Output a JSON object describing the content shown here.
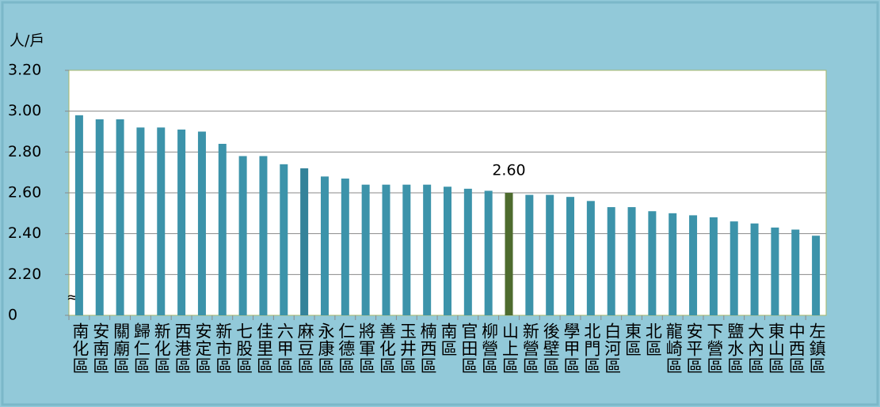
{
  "chart_data": {
    "type": "bar",
    "y_label": "人/戶",
    "categories": [
      "南化區",
      "安南區",
      "關廟區",
      "歸仁區",
      "新化區",
      "西港區",
      "安定區",
      "新市區",
      "七股區",
      "佳里區",
      "六甲區",
      "麻豆區",
      "永康區",
      "仁德區",
      "將軍區",
      "善化區",
      "玉井區",
      "楠西區",
      "南區",
      "官田區",
      "柳營區",
      "山上區",
      "新營區",
      "後壁區",
      "學甲區",
      "北門區",
      "白河區",
      "東區",
      "北區",
      "龍崎區",
      "安平區",
      "下營區",
      "鹽水區",
      "大內區",
      "東山區",
      "中西區",
      "左鎮區"
    ],
    "values": [
      2.98,
      2.96,
      2.96,
      2.92,
      2.92,
      2.91,
      2.9,
      2.84,
      2.78,
      2.78,
      2.74,
      2.72,
      2.68,
      2.67,
      2.64,
      2.64,
      2.64,
      2.64,
      2.63,
      2.62,
      2.61,
      2.6,
      2.59,
      2.59,
      2.58,
      2.56,
      2.53,
      2.53,
      2.51,
      2.5,
      2.49,
      2.48,
      2.46,
      2.45,
      2.43,
      2.42,
      2.39
    ],
    "value_labels": [
      null,
      null,
      null,
      null,
      null,
      null,
      null,
      null,
      null,
      null,
      null,
      null,
      null,
      null,
      null,
      null,
      null,
      null,
      null,
      null,
      null,
      "2.60",
      null,
      null,
      null,
      null,
      null,
      null,
      null,
      null,
      null,
      null,
      null,
      null,
      null,
      null,
      null
    ],
    "colors": [
      "#3c93aa",
      "#3c93aa",
      "#3c93aa",
      "#3c93aa",
      "#3c93aa",
      "#3c93aa",
      "#3c93aa",
      "#3c93aa",
      "#3c93aa",
      "#3c93aa",
      "#3c93aa",
      "#34839a",
      "#3c93aa",
      "#3c93aa",
      "#3c93aa",
      "#3c93aa",
      "#3c93aa",
      "#3c93aa",
      "#3c93aa",
      "#3c93aa",
      "#3c93aa",
      "#4e6b2e",
      "#3c93aa",
      "#3c93aa",
      "#3c93aa",
      "#3c93aa",
      "#3c93aa",
      "#3c93aa",
      "#3c93aa",
      "#3c93aa",
      "#3c93aa",
      "#3c93aa",
      "#3c93aa",
      "#3c93aa",
      "#3c93aa",
      "#3c93aa",
      "#3c93aa"
    ],
    "ylim": [
      0,
      3.2
    ],
    "axis_break": [
      0,
      2.0
    ],
    "yticks": [
      0,
      {
        "value": 2.2,
        "label": "2.20"
      },
      {
        "value": 2.4,
        "label": "2.40"
      },
      {
        "value": 2.6,
        "label": "2.60"
      },
      {
        "value": 2.8,
        "label": "2.80"
      },
      {
        "value": 3.0,
        "label": "3.00"
      },
      {
        "value": 3.2,
        "label": "3.20"
      }
    ],
    "grid": true
  }
}
